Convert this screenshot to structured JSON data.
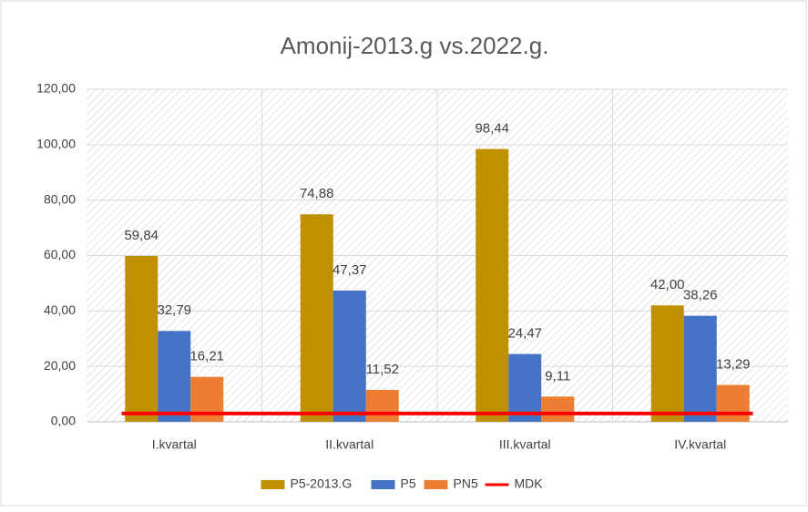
{
  "chart_data": {
    "type": "bar",
    "title": "Amonij-2013.g vs.2022.g.",
    "categories": [
      "I.kvartal",
      "II.kvartal",
      "III.kvartal",
      "IV.kvartal"
    ],
    "series": [
      {
        "name": "P5-2013.G",
        "color": "#bf9000",
        "values": [
          59.84,
          74.88,
          98.44,
          42.0
        ],
        "value_labels": [
          "59,84",
          "74,88",
          "98,44",
          "42,00"
        ]
      },
      {
        "name": "P5",
        "color": "#4472c4",
        "values": [
          32.79,
          47.37,
          24.47,
          38.26
        ],
        "value_labels": [
          "32,79",
          "47,37",
          "24,47",
          "38,26"
        ]
      },
      {
        "name": "PN5",
        "color": "#ed7d31",
        "values": [
          16.21,
          11.52,
          9.11,
          13.29
        ],
        "value_labels": [
          "16,21",
          "11,52",
          "9,11",
          "13,29"
        ]
      },
      {
        "name": "MDK",
        "color": "#ff0000",
        "type": "line",
        "values": [
          3,
          3,
          3,
          3
        ]
      }
    ],
    "ylim": [
      0,
      120
    ],
    "yticks": [
      {
        "value": 0,
        "label": "0,00"
      },
      {
        "value": 20,
        "label": "20,00"
      },
      {
        "value": 40,
        "label": "40,00"
      },
      {
        "value": 60,
        "label": "60,00"
      },
      {
        "value": 80,
        "label": "80,00"
      },
      {
        "value": 100,
        "label": "100,00"
      },
      {
        "value": 120,
        "label": "120,00"
      }
    ],
    "grid": true,
    "legend": "bottom"
  }
}
